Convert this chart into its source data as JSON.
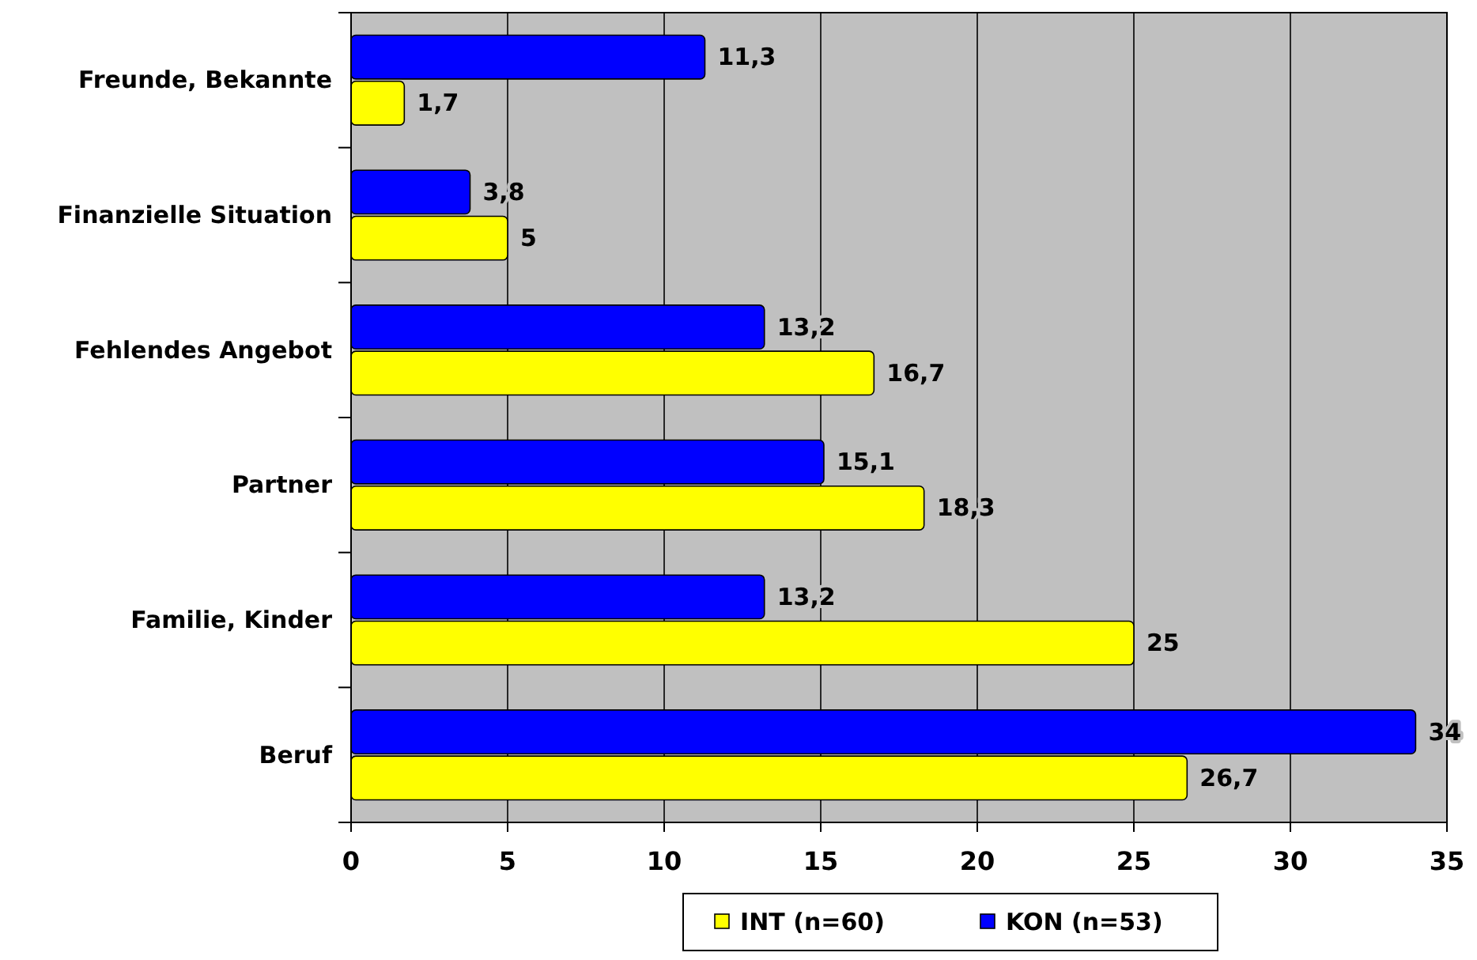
{
  "chart_data": {
    "type": "bar",
    "orientation": "horizontal",
    "categories": [
      "Freunde, Bekannte",
      "Finanzielle Situation",
      "Fehlendes Angebot",
      "Partner",
      "Familie, Kinder",
      "Beruf"
    ],
    "series": [
      {
        "name": "INT (n=60)",
        "color": "#ffff00",
        "values": [
          1.7,
          5,
          16.7,
          18.3,
          25,
          26.7
        ],
        "value_labels": [
          "1,7",
          "5",
          "16,7",
          "18,3",
          "25",
          "26,7"
        ]
      },
      {
        "name": "KON (n=53)",
        "color": "#0000ff",
        "values": [
          11.3,
          3.8,
          13.2,
          15.1,
          13.2,
          34
        ],
        "value_labels": [
          "11,3",
          "3,8",
          "13,2",
          "15,1",
          "13,2",
          "34"
        ]
      }
    ],
    "xlim": [
      0,
      35
    ],
    "xticks": [
      0,
      5,
      10,
      15,
      20,
      25,
      30,
      35
    ],
    "grid": "x",
    "legend": "bottom"
  }
}
